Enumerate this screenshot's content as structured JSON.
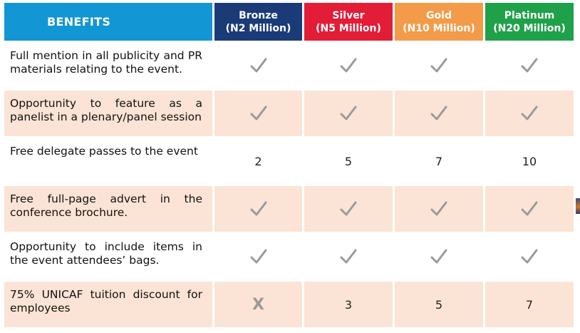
{
  "header": {
    "benefits_label": "BENEFITS",
    "tiers": [
      {
        "name": "Bronze",
        "price": "(N2 Million)",
        "color": "#1a3b78"
      },
      {
        "name": "Silver",
        "price": "(N5 Million)",
        "color": "#e31c38"
      },
      {
        "name": "Gold",
        "price": "(N10 Million)",
        "color": "#f49b4a"
      },
      {
        "name": "Platinum",
        "price": "(N20 Million)",
        "color": "#1fa14a"
      }
    ]
  },
  "rows": [
    {
      "benefit": "Full mention in all publicity and PR materials relating to the event.",
      "values": [
        "check-icon",
        "check-icon",
        "check-icon",
        "check-icon"
      ]
    },
    {
      "benefit": "Opportunity to feature as a panelist in a plenary/panel session",
      "values": [
        "check-icon",
        "check-icon",
        "check-icon",
        "check-icon"
      ]
    },
    {
      "benefit": "Free delegate passes to the event",
      "values": [
        "2",
        "5",
        "7",
        "10"
      ]
    },
    {
      "benefit": "Free full-page advert in the conference brochure.",
      "values": [
        "check-icon",
        "check-icon",
        "check-icon",
        "check-icon"
      ]
    },
    {
      "benefit": "Opportunity to include items in the event attendees’ bags.",
      "values": [
        "check-icon",
        "check-icon",
        "check-icon",
        "check-icon"
      ]
    },
    {
      "benefit": "75% UNICAF tuition discount for employees",
      "values": [
        "X",
        "3",
        "5",
        "7"
      ]
    }
  ],
  "colors": {
    "benefits_header": "#1296d4",
    "shaded_row": "#fbe4d5",
    "check": "#9a9a9a"
  }
}
